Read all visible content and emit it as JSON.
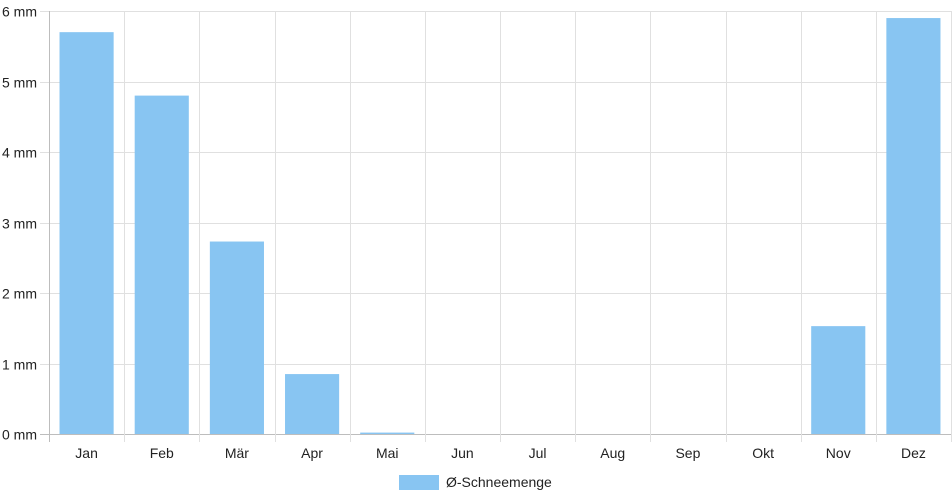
{
  "chart_data": {
    "type": "bar",
    "categories": [
      "Jan",
      "Feb",
      "Mär",
      "Apr",
      "Mai",
      "Jun",
      "Jul",
      "Aug",
      "Sep",
      "Okt",
      "Nov",
      "Dez"
    ],
    "series": [
      {
        "name": "Ø-Schneemenge",
        "values": [
          5.7,
          4.8,
          2.73,
          0.85,
          0.02,
          0,
          0,
          0,
          0,
          0,
          1.53,
          5.9
        ],
        "color": "#88c5f2"
      }
    ],
    "y_ticks": [
      "0 mm",
      "1 mm",
      "2 mm",
      "3 mm",
      "4 mm",
      "5 mm",
      "6 mm"
    ],
    "ylim": [
      0,
      6
    ],
    "grid": true,
    "legend": "bottom-center"
  }
}
